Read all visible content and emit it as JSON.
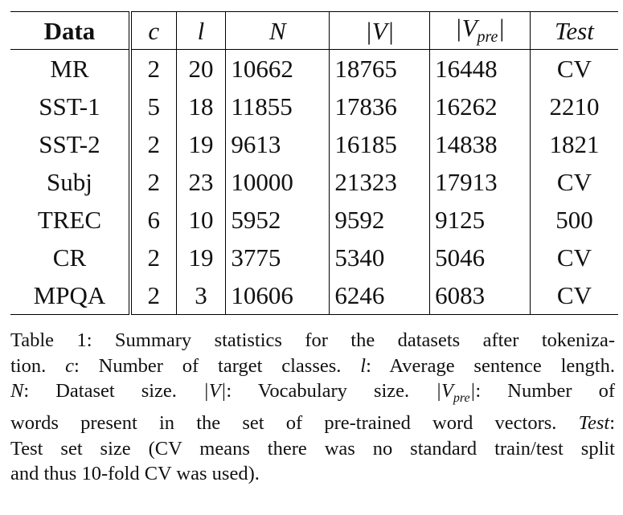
{
  "table": {
    "headers": {
      "data": "Data",
      "c": "c",
      "l": "l",
      "n": "N",
      "v": "|V|",
      "vpre_base": "|V",
      "vpre_sub": "pre",
      "vpre_end": "|",
      "test": "Test"
    },
    "rows": [
      {
        "data": "MR",
        "c": "2",
        "l": "20",
        "n": "10662",
        "v": "18765",
        "vpre": "16448",
        "test": "CV"
      },
      {
        "data": "SST-1",
        "c": "5",
        "l": "18",
        "n": "11855",
        "v": "17836",
        "vpre": "16262",
        "test": "2210"
      },
      {
        "data": "SST-2",
        "c": "2",
        "l": "19",
        "n": "9613",
        "v": "16185",
        "vpre": "14838",
        "test": "1821"
      },
      {
        "data": "Subj",
        "c": "2",
        "l": "23",
        "n": "10000",
        "v": "21323",
        "vpre": "17913",
        "test": "CV"
      },
      {
        "data": "TREC",
        "c": "6",
        "l": "10",
        "n": "5952",
        "v": "9592",
        "vpre": "9125",
        "test": "500"
      },
      {
        "data": "CR",
        "c": "2",
        "l": "19",
        "n": "3775",
        "v": "5340",
        "vpre": "5046",
        "test": "CV"
      },
      {
        "data": "MPQA",
        "c": "2",
        "l": "3",
        "n": "10606",
        "v": "6246",
        "vpre": "6083",
        "test": "CV"
      }
    ]
  },
  "caption": {
    "line1": "Table 1: Summary statistics for the datasets after tokeniza-",
    "line2_a": "tion. ",
    "line2_c": "c",
    "line2_b": ": Number of target classes. ",
    "line2_l": "l",
    "line2_d": ": Average sentence length.",
    "line3_n": "N",
    "line3_a": ": Dataset size. ",
    "line3_v": "|V|",
    "line3_b": ": Vocabulary size. ",
    "line3_vpre_base": "|V",
    "line3_vpre_sub": "pre",
    "line3_vpre_end": "|",
    "line3_c": ": Number of",
    "line4_a": "words present in the set of pre-trained word vectors. ",
    "line4_test": "Test",
    "line4_b": ":",
    "line5": "Test set size (CV means there was no standard train/test split",
    "line6": "and thus 10-fold CV was used)."
  }
}
